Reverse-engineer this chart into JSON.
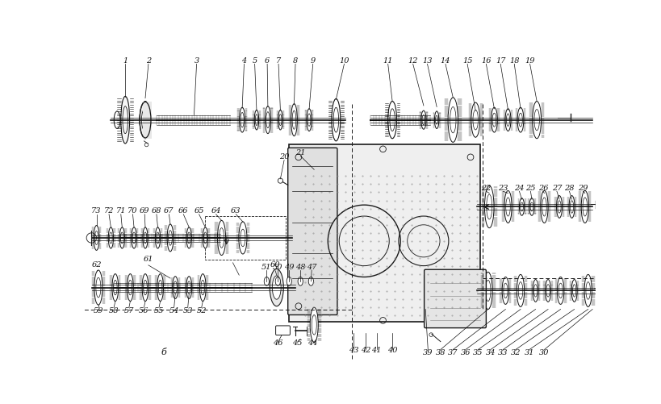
{
  "bg_color": "#ffffff",
  "fig_width": 8.2,
  "fig_height": 5.01,
  "dpi": 100,
  "line_color": "#1a1a1a",
  "text_color": "#111111",
  "font_size": 7.0,
  "font_size_b": 8.0
}
